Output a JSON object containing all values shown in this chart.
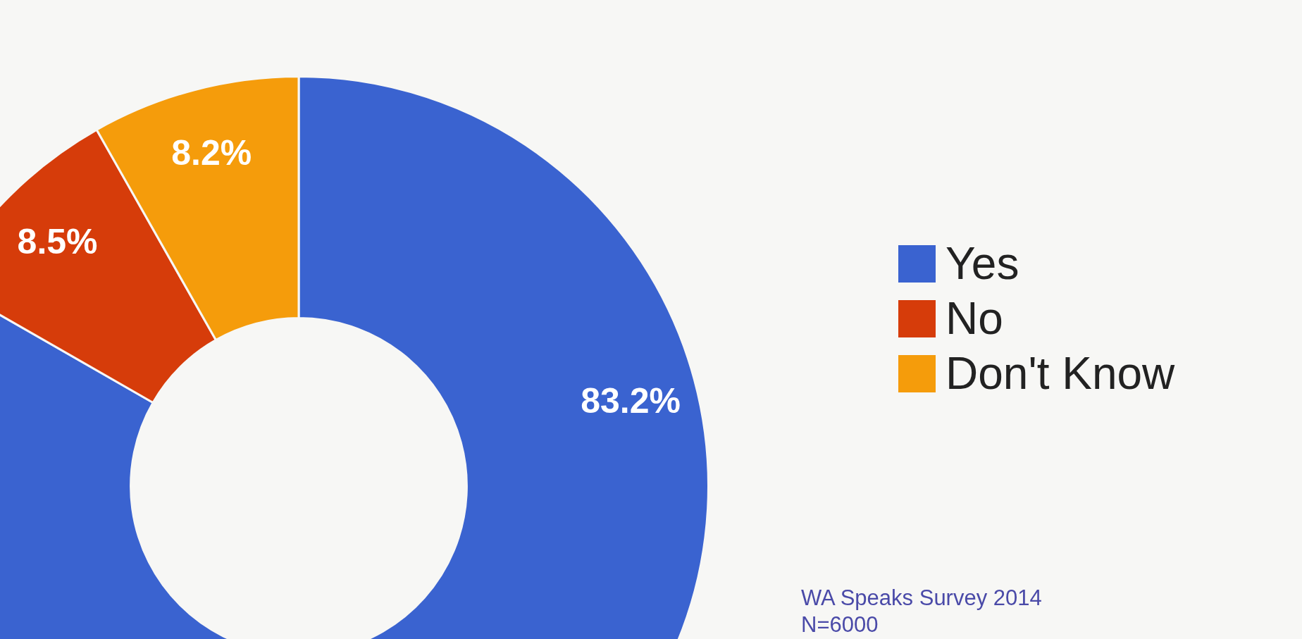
{
  "chart_data": {
    "type": "donut",
    "categories": [
      "Yes",
      "No",
      "Don't Know"
    ],
    "values": [
      83.2,
      8.5,
      8.2
    ],
    "colors": [
      "#3a63d0",
      "#d63c0a",
      "#f59c0b"
    ],
    "value_labels": [
      "83.2%",
      "8.5%",
      "8.2%"
    ],
    "legend": "right",
    "annotations": [
      "WA Speaks Survey 2014",
      "N=6000"
    ]
  }
}
